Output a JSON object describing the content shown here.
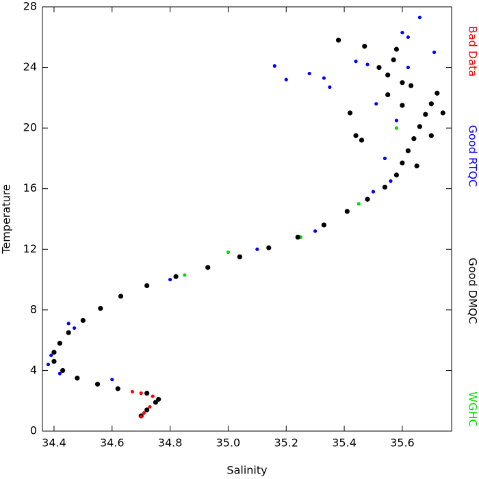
{
  "chart_data": {
    "type": "scatter",
    "x_label": "Salinity",
    "y_label": "Temperature",
    "xlim": [
      34.36,
      35.77
    ],
    "ylim": [
      0,
      28
    ],
    "xticks": [
      34.4,
      34.6,
      34.8,
      {
        "value": 35,
        "label": "35.0"
      },
      35.2,
      35.4,
      35.6
    ],
    "yticks": [
      0,
      4,
      8,
      12,
      16,
      20,
      24,
      28
    ],
    "legend": "right",
    "series": [
      {
        "name": "Bad Data",
        "color": "#ff0000",
        "x": [
          34.7,
          34.71,
          34.73,
          34.74,
          34.7,
          34.67
        ],
        "y": [
          0.95,
          1.2,
          1.6,
          2.3,
          2.5,
          2.6
        ]
      },
      {
        "name": "Good RTQC",
        "color": "#0000ff",
        "x": [
          34.39,
          34.42,
          34.47,
          34.6,
          34.8,
          35.1,
          35.5,
          35.66,
          35.62,
          35.16,
          35.2,
          35.28,
          35.33,
          35.35,
          35.44,
          35.62,
          35.71,
          35.6,
          35.54,
          35.58,
          35.51,
          35.48,
          34.38,
          34.45,
          35.3,
          35.56
        ],
        "y": [
          5.0,
          3.8,
          6.8,
          3.4,
          10.0,
          12.0,
          15.8,
          27.3,
          26.0,
          24.1,
          23.2,
          23.6,
          23.3,
          22.7,
          24.4,
          24.0,
          25.0,
          26.3,
          18.0,
          20.5,
          21.6,
          24.2,
          4.4,
          7.1,
          13.2,
          16.5
        ]
      },
      {
        "name": "Good DMQC",
        "color": "#000000",
        "x": [
          34.7,
          34.72,
          34.75,
          34.76,
          34.72,
          34.62,
          34.55,
          34.48,
          34.43,
          34.4,
          34.4,
          34.42,
          34.45,
          34.5,
          34.56,
          34.63,
          34.72,
          34.82,
          34.93,
          35.04,
          35.14,
          35.24,
          35.33,
          35.41,
          35.48,
          35.54,
          35.58,
          35.6,
          35.62,
          35.64,
          35.66,
          35.68,
          35.7,
          35.72,
          35.6,
          35.63,
          35.55,
          35.57,
          35.6,
          35.58,
          35.38,
          35.47,
          35.52,
          35.44,
          35.46,
          35.42,
          35.7,
          35.74,
          35.65,
          35.55
        ],
        "y": [
          1.0,
          1.4,
          1.9,
          2.1,
          2.5,
          2.8,
          3.1,
          3.5,
          4.0,
          4.6,
          5.2,
          5.8,
          6.5,
          7.3,
          8.1,
          8.9,
          9.6,
          10.2,
          10.8,
          11.5,
          12.1,
          12.8,
          13.6,
          14.5,
          15.3,
          16.1,
          16.9,
          17.7,
          18.5,
          19.3,
          20.1,
          20.9,
          21.6,
          22.3,
          21.5,
          22.8,
          23.5,
          24.5,
          23.0,
          25.2,
          25.8,
          25.4,
          24.0,
          19.5,
          19.2,
          21.0,
          19.5,
          21.0,
          17.5,
          22.2
        ]
      },
      {
        "name": "WGHC",
        "color": "#00dd00",
        "x": [
          35.0,
          35.25,
          35.45,
          35.58,
          34.85
        ],
        "y": [
          11.8,
          12.8,
          15.0,
          20.0,
          10.3
        ]
      }
    ]
  }
}
